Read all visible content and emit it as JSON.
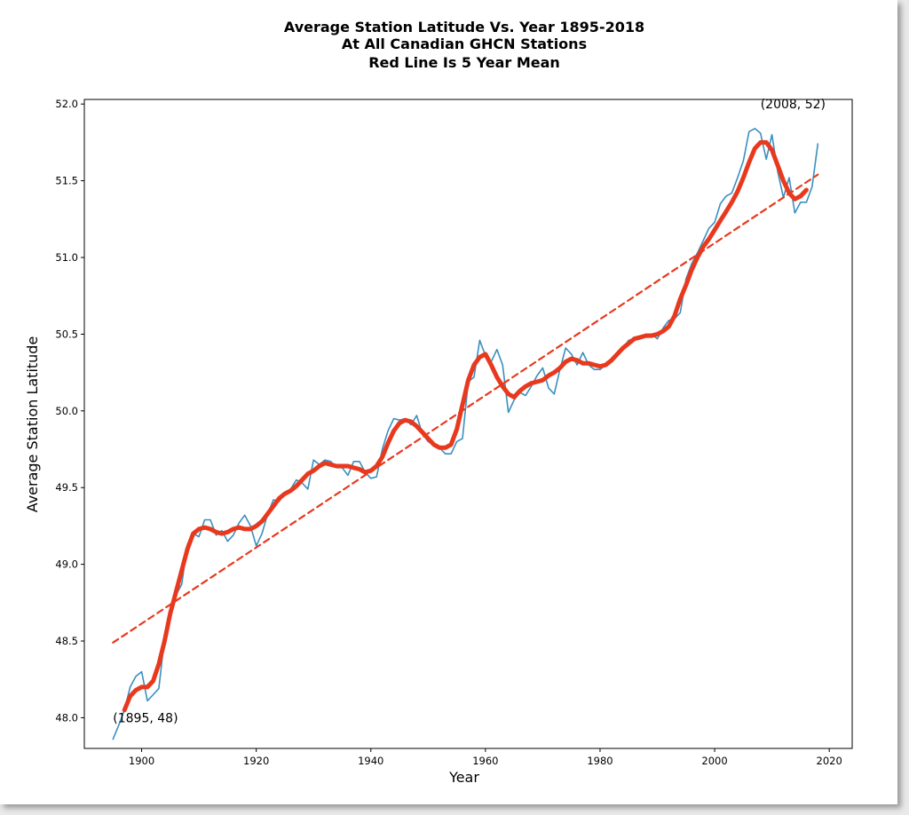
{
  "chart_data": {
    "type": "line",
    "title": [
      "Average Station Latitude Vs. Year 1895-2018",
      "At All Canadian GHCN Stations",
      "Red Line Is 5 Year Mean"
    ],
    "xlabel": "Year",
    "ylabel": "Average Station Latitude",
    "xlim": [
      1890,
      2024
    ],
    "ylim": [
      47.8,
      52.03
    ],
    "xticks": [
      1900,
      1920,
      1940,
      1960,
      1980,
      2000,
      2020
    ],
    "yticks": [
      48.0,
      48.5,
      49.0,
      49.5,
      50.0,
      50.5,
      51.0,
      51.5,
      52.0
    ],
    "xtick_labels": [
      "1900",
      "1920",
      "1940",
      "1960",
      "1980",
      "2000",
      "2020"
    ],
    "ytick_labels": [
      "48.0",
      "48.5",
      "49.0",
      "49.5",
      "50.0",
      "50.5",
      "51.0",
      "51.5",
      "52.0"
    ],
    "grid": false,
    "series": [
      {
        "role": "annual",
        "color": "#3a8fc0",
        "x": [
          1895,
          1896,
          1897,
          1898,
          1899,
          1900,
          1901,
          1902,
          1903,
          1904,
          1905,
          1906,
          1907,
          1908,
          1909,
          1910,
          1911,
          1912,
          1913,
          1914,
          1915,
          1916,
          1917,
          1918,
          1919,
          1920,
          1921,
          1922,
          1923,
          1924,
          1925,
          1926,
          1927,
          1928,
          1929,
          1930,
          1931,
          1932,
          1933,
          1934,
          1935,
          1936,
          1937,
          1938,
          1939,
          1940,
          1941,
          1942,
          1943,
          1944,
          1945,
          1946,
          1947,
          1948,
          1949,
          1950,
          1951,
          1952,
          1953,
          1954,
          1955,
          1956,
          1957,
          1958,
          1959,
          1960,
          1961,
          1962,
          1963,
          1964,
          1965,
          1966,
          1967,
          1968,
          1969,
          1970,
          1971,
          1972,
          1973,
          1974,
          1975,
          1976,
          1977,
          1978,
          1979,
          1980,
          1981,
          1982,
          1983,
          1984,
          1985,
          1986,
          1987,
          1988,
          1989,
          1990,
          1991,
          1992,
          1993,
          1994,
          1995,
          1996,
          1997,
          1998,
          1999,
          2000,
          2001,
          2002,
          2003,
          2004,
          2005,
          2006,
          2007,
          2008,
          2009,
          2010,
          2011,
          2012,
          2013,
          2014,
          2015,
          2016,
          2017,
          2018
        ],
        "y": [
          47.86,
          47.95,
          48.05,
          48.2,
          48.27,
          48.3,
          48.11,
          48.15,
          48.19,
          48.52,
          48.66,
          48.8,
          48.87,
          49.13,
          49.2,
          49.18,
          49.29,
          49.29,
          49.19,
          49.22,
          49.15,
          49.19,
          49.27,
          49.32,
          49.25,
          49.12,
          49.2,
          49.33,
          49.42,
          49.41,
          49.46,
          49.49,
          49.55,
          49.53,
          49.49,
          49.68,
          49.65,
          49.68,
          49.67,
          49.63,
          49.63,
          49.58,
          49.67,
          49.67,
          49.6,
          49.56,
          49.57,
          49.75,
          49.87,
          49.95,
          49.94,
          49.95,
          49.91,
          49.97,
          49.85,
          49.8,
          49.78,
          49.76,
          49.72,
          49.72,
          49.8,
          49.82,
          50.19,
          50.22,
          50.46,
          50.36,
          50.32,
          50.4,
          50.3,
          49.99,
          50.07,
          50.12,
          50.1,
          50.16,
          50.23,
          50.28,
          50.15,
          50.11,
          50.27,
          50.41,
          50.37,
          50.3,
          50.38,
          50.3,
          50.27,
          50.27,
          50.3,
          50.33,
          50.36,
          50.41,
          50.46,
          50.47,
          50.48,
          50.5,
          50.5,
          50.47,
          50.54,
          50.59,
          50.6,
          50.64,
          50.86,
          50.96,
          51.03,
          51.11,
          51.19,
          51.23,
          51.35,
          51.4,
          51.42,
          51.52,
          51.63,
          51.82,
          51.84,
          51.81,
          51.64,
          51.8,
          51.56,
          51.39,
          51.52,
          51.29,
          51.36,
          51.36,
          51.46,
          51.74
        ]
      },
      {
        "role": "5-year mean",
        "color": "#e8391e",
        "x": [
          1897,
          1898,
          1899,
          1900,
          1901,
          1902,
          1903,
          1904,
          1905,
          1906,
          1907,
          1908,
          1909,
          1910,
          1911,
          1912,
          1913,
          1914,
          1915,
          1916,
          1917,
          1918,
          1919,
          1920,
          1921,
          1922,
          1923,
          1924,
          1925,
          1926,
          1927,
          1928,
          1929,
          1930,
          1931,
          1932,
          1933,
          1934,
          1935,
          1936,
          1937,
          1938,
          1939,
          1940,
          1941,
          1942,
          1943,
          1944,
          1945,
          1946,
          1947,
          1948,
          1949,
          1950,
          1951,
          1952,
          1953,
          1954,
          1955,
          1956,
          1957,
          1958,
          1959,
          1960,
          1961,
          1962,
          1963,
          1964,
          1965,
          1966,
          1967,
          1968,
          1969,
          1970,
          1971,
          1972,
          1973,
          1974,
          1975,
          1976,
          1977,
          1978,
          1979,
          1980,
          1981,
          1982,
          1983,
          1984,
          1985,
          1986,
          1987,
          1988,
          1989,
          1990,
          1991,
          1992,
          1993,
          1994,
          1995,
          1996,
          1997,
          1998,
          1999,
          2000,
          2001,
          2002,
          2003,
          2004,
          2005,
          2006,
          2007,
          2008,
          2009,
          2010,
          2011,
          2012,
          2013,
          2014,
          2015,
          2016
        ],
        "y": [
          48.05,
          48.14,
          48.18,
          48.2,
          48.2,
          48.24,
          48.35,
          48.5,
          48.68,
          48.82,
          48.96,
          49.1,
          49.2,
          49.23,
          49.24,
          49.23,
          49.21,
          49.2,
          49.21,
          49.23,
          49.24,
          49.23,
          49.23,
          49.25,
          49.28,
          49.33,
          49.38,
          49.43,
          49.46,
          49.48,
          49.51,
          49.55,
          49.59,
          49.61,
          49.64,
          49.66,
          49.65,
          49.64,
          49.64,
          49.64,
          49.63,
          49.62,
          49.6,
          49.61,
          49.64,
          49.7,
          49.79,
          49.87,
          49.92,
          49.94,
          49.93,
          49.9,
          49.86,
          49.82,
          49.78,
          49.76,
          49.76,
          49.78,
          49.88,
          50.04,
          50.2,
          50.3,
          50.35,
          50.37,
          50.3,
          50.22,
          50.16,
          50.11,
          50.09,
          50.13,
          50.16,
          50.18,
          50.19,
          50.2,
          50.23,
          50.25,
          50.28,
          50.32,
          50.34,
          50.33,
          50.31,
          50.31,
          50.3,
          50.29,
          50.3,
          50.33,
          50.37,
          50.41,
          50.44,
          50.47,
          50.48,
          50.49,
          50.49,
          50.5,
          50.52,
          50.55,
          50.62,
          50.73,
          50.82,
          50.92,
          51.0,
          51.07,
          51.12,
          51.18,
          51.24,
          51.3,
          51.36,
          51.43,
          51.52,
          51.62,
          51.71,
          51.75,
          51.75,
          51.7,
          51.6,
          51.5,
          51.42,
          51.38,
          51.4,
          51.44
        ]
      },
      {
        "role": "trend",
        "color": "#e8391e",
        "style": "dashed",
        "x": [
          1895,
          2018
        ],
        "y": [
          48.49,
          51.54
        ]
      }
    ],
    "annotations": [
      {
        "text": "(1895, 48)",
        "x": 1895,
        "y": 48.0
      },
      {
        "text": "(2008, 52)",
        "x": 2008,
        "y": 52.0
      }
    ]
  }
}
